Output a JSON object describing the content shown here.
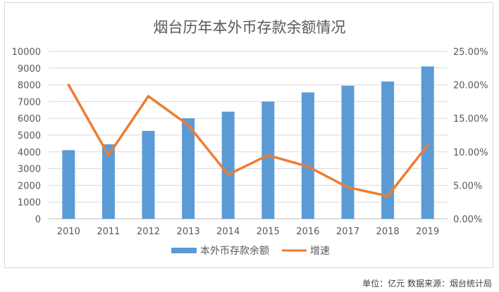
{
  "chart_data": {
    "type": "bar",
    "title": "烟台历年本外币存款余额情况",
    "categories": [
      "2010",
      "2011",
      "2012",
      "2013",
      "2014",
      "2015",
      "2016",
      "2017",
      "2018",
      "2019"
    ],
    "series": [
      {
        "name": "本外币存款余额",
        "type": "bar",
        "axis": "left",
        "color": "#5b9bd5",
        "values": [
          4100,
          4450,
          5250,
          6000,
          6400,
          7000,
          7550,
          7950,
          8200,
          9100
        ]
      },
      {
        "name": "增速",
        "type": "line",
        "axis": "right",
        "color": "#ed7d31",
        "values": [
          0.2,
          0.095,
          0.183,
          0.14,
          0.066,
          0.095,
          0.078,
          0.047,
          0.034,
          0.11
        ]
      }
    ],
    "y_left": {
      "min": 0,
      "max": 10000,
      "step": 1000,
      "ticks": [
        "0",
        "1000",
        "2000",
        "3000",
        "4000",
        "5000",
        "6000",
        "7000",
        "8000",
        "9000",
        "10000"
      ]
    },
    "y_right": {
      "min": 0,
      "max": 0.25,
      "step": 0.05,
      "ticks": [
        "0.00%",
        "5.00%",
        "10.00%",
        "15.00%",
        "20.00%",
        "25.00%"
      ]
    },
    "grid": true,
    "legend_position": "bottom"
  },
  "source_note": "单位：亿元  数据来源：烟台统计局"
}
